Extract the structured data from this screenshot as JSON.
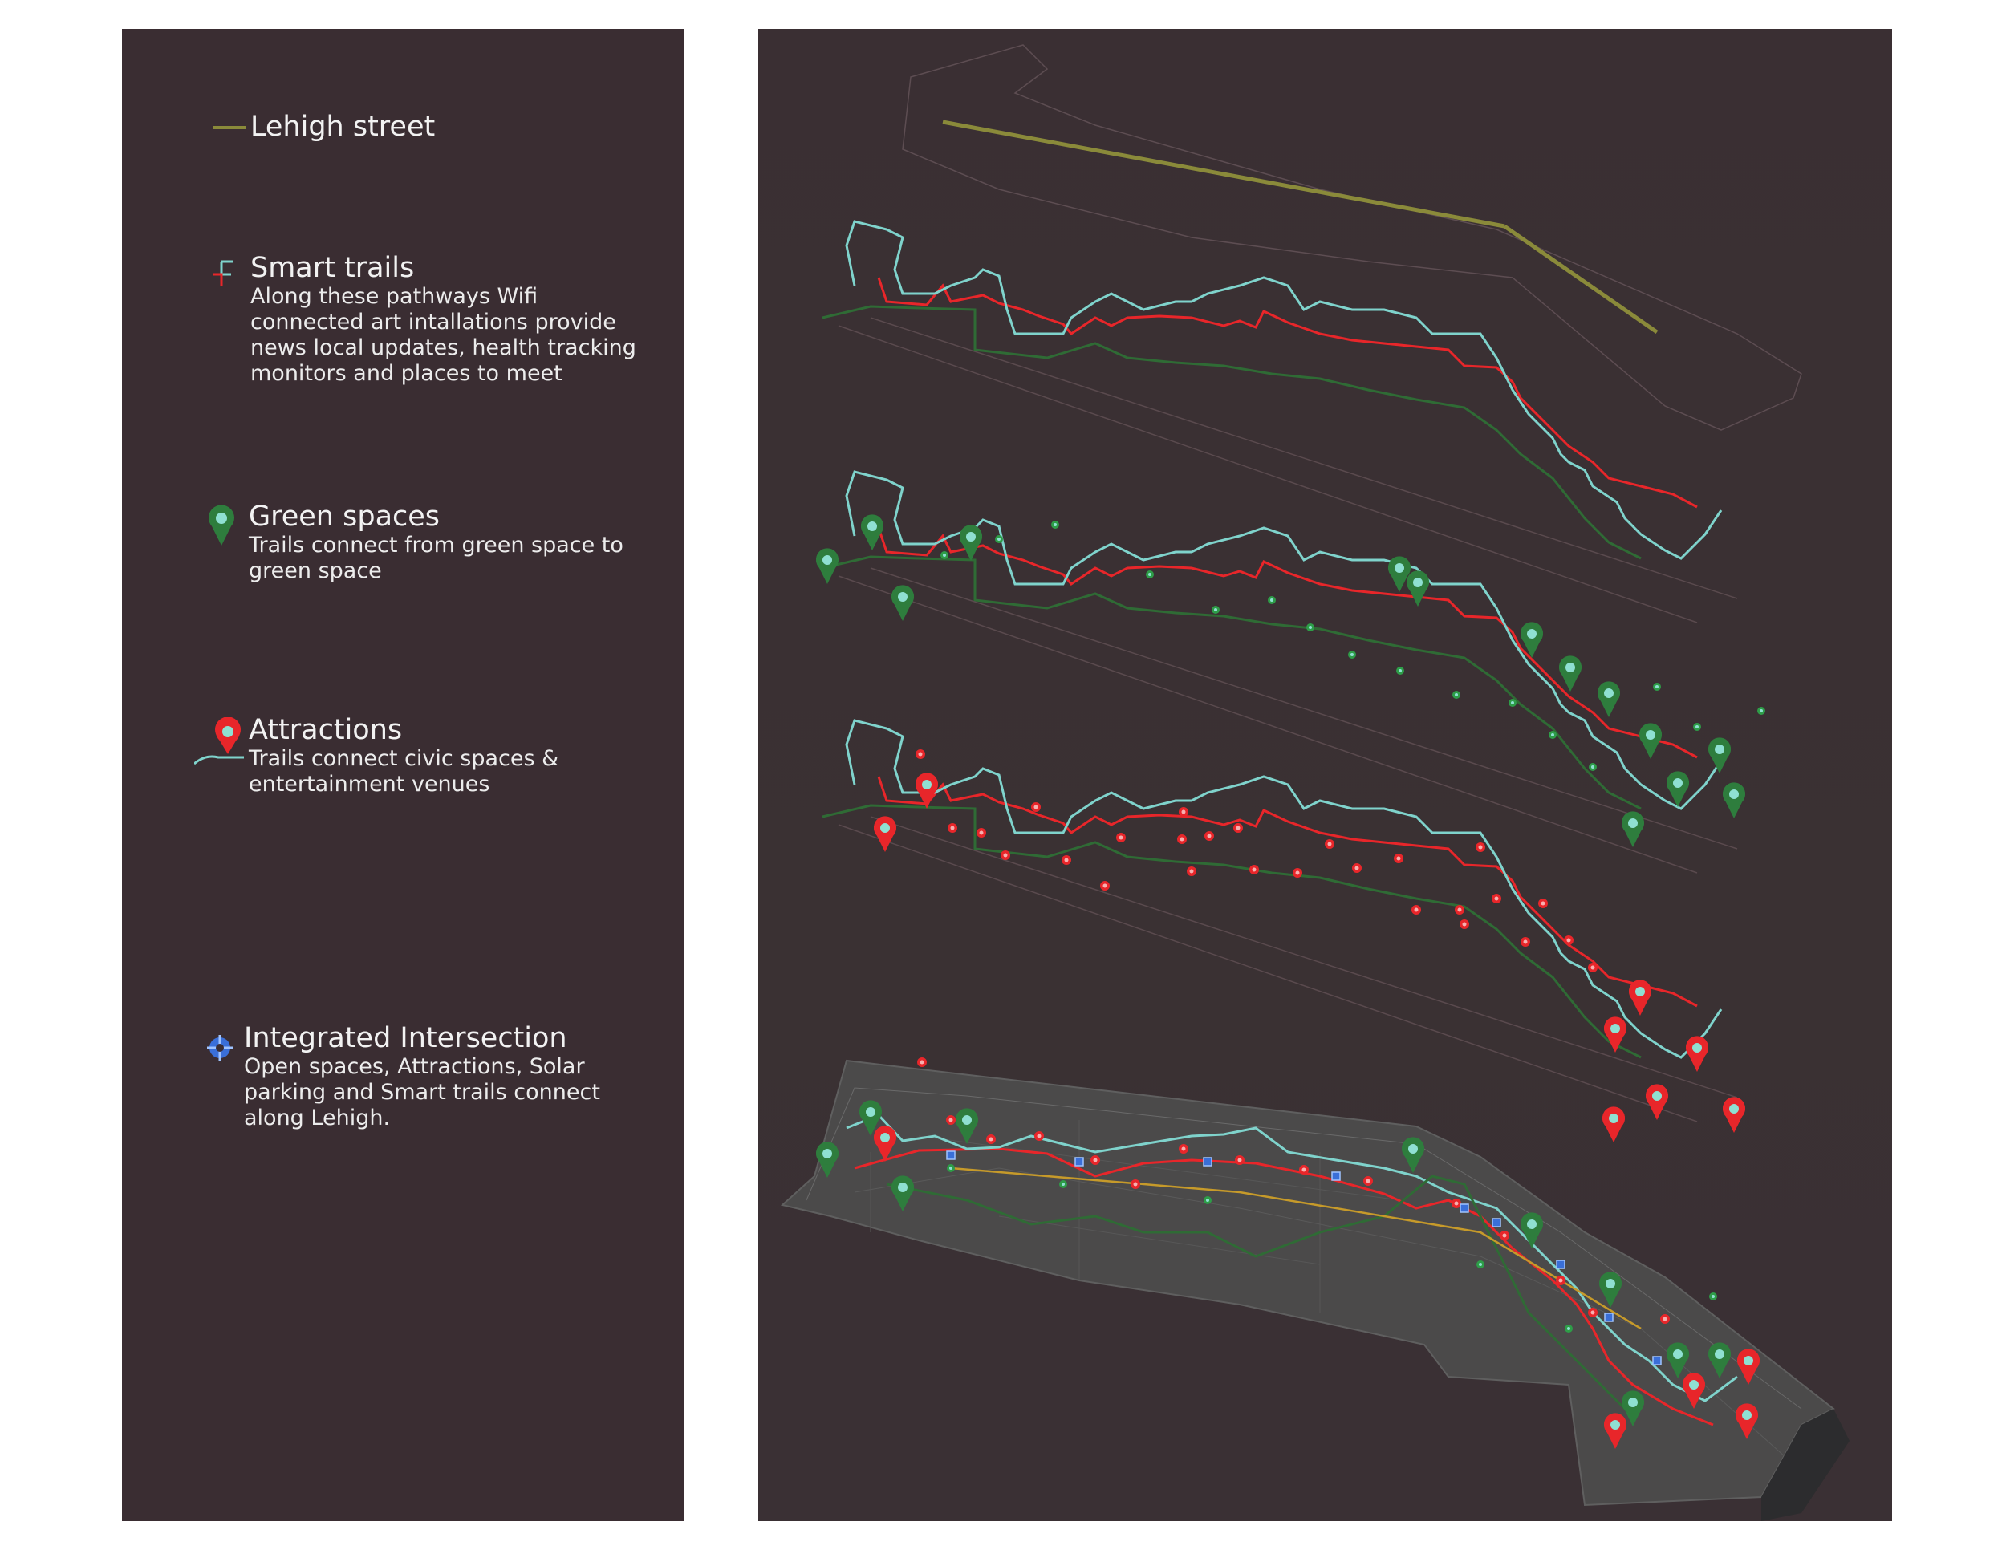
{
  "legend": {
    "items": [
      {
        "key": "lehigh",
        "title": "Lehigh street",
        "desc": ""
      },
      {
        "key": "trails",
        "title": "Smart trails",
        "desc": "Along these pathways Wifi connected art intallations provide news local updates, health tracking monitors and places to meet"
      },
      {
        "key": "green",
        "title": "Green spaces",
        "desc": "Trails connect from green space to green space"
      },
      {
        "key": "attractions",
        "title": "Attractions",
        "desc": "Trails connect civic spaces & entertainment venues"
      },
      {
        "key": "intersection",
        "title": "Integrated Intersection",
        "desc": "Open spaces, Attractions, Solar parking and Smart trails connect along Lehigh."
      }
    ]
  },
  "colors": {
    "lehigh_street": "#8a8a3a",
    "trail_red": "#e8262a",
    "trail_cyan": "#7fd3cc",
    "trail_green": "#2f6b35",
    "green_marker": "#2e7d3d",
    "attraction_marker": "#e8262a",
    "marker_center": "#8fe0d2",
    "intersection_icon": "#3a6fd8",
    "panel_background": "#3a2d32"
  },
  "icons": {
    "lehigh": "line-segment-icon",
    "trails": "trail-branch-icon",
    "green": "green-pin-icon",
    "attractions": "red-pin-icon",
    "intersection": "crosshair-node-icon"
  }
}
